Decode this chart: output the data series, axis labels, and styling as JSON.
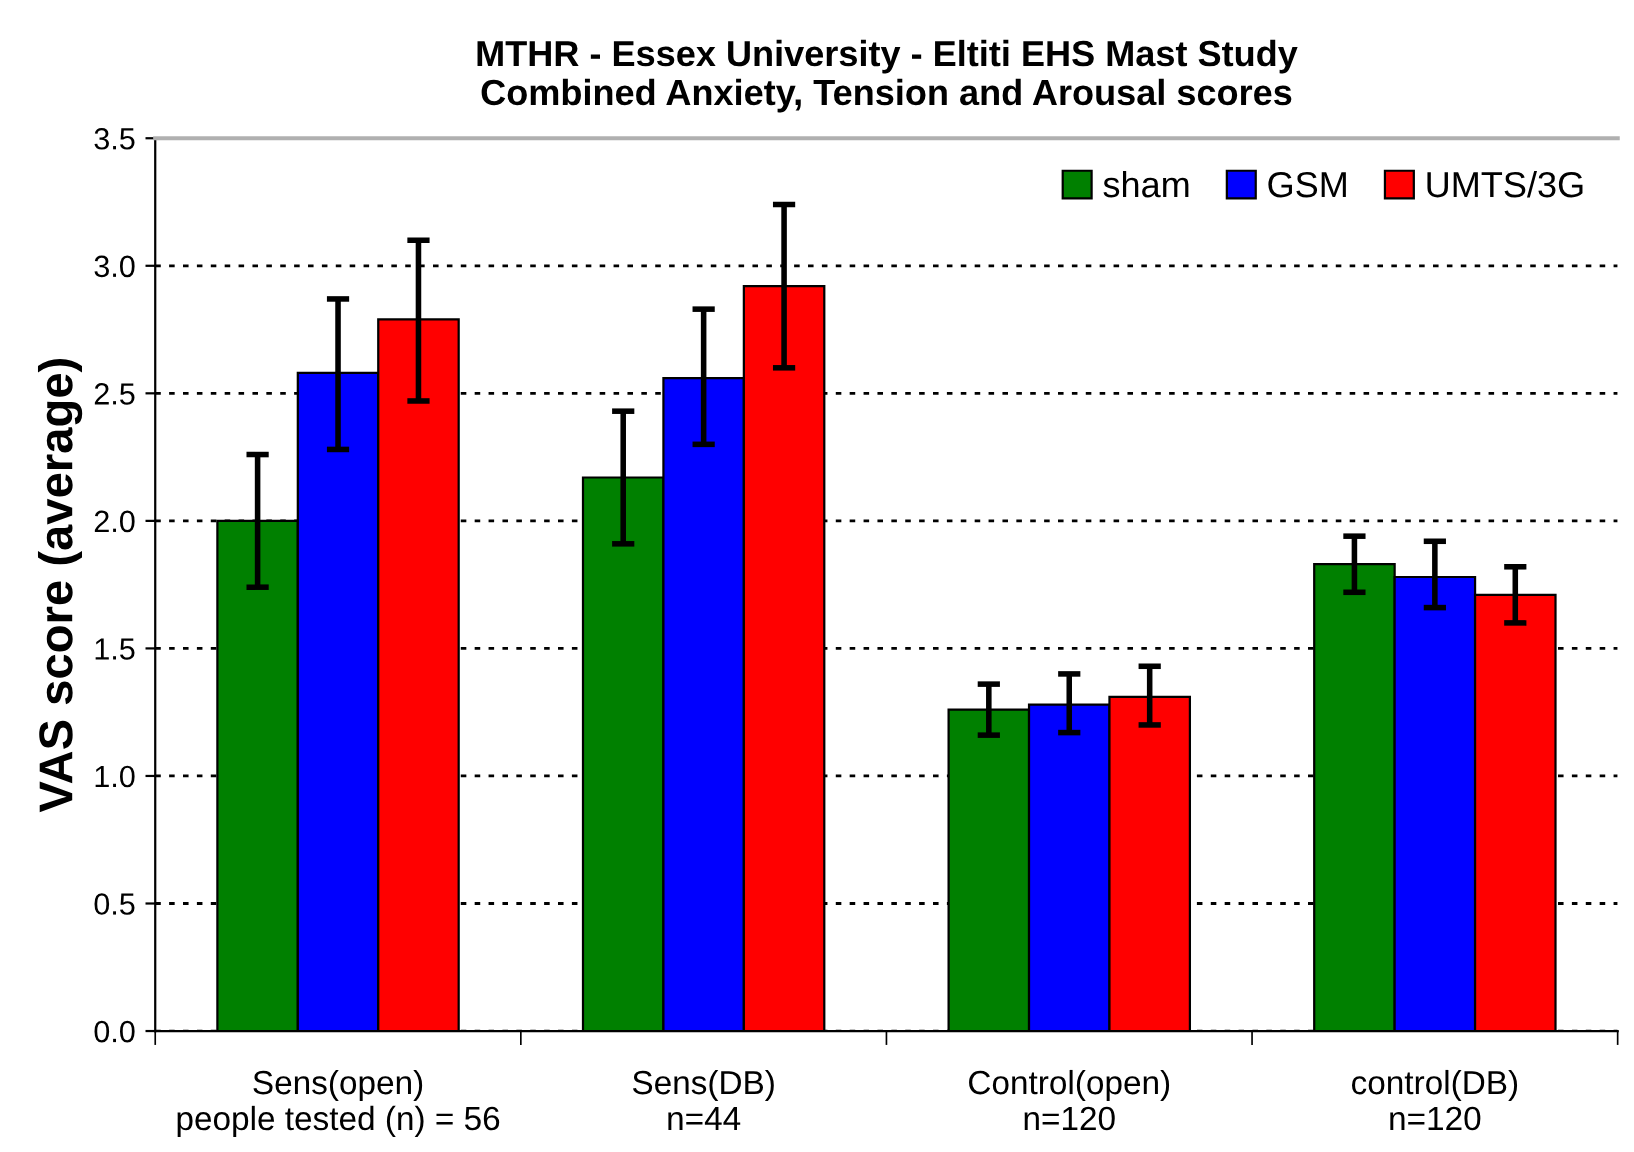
{
  "chart_data": {
    "type": "bar",
    "title": "MTHR - Essex University - Eltiti EHS Mast Study\nCombined Anxiety, Tension and Arousal scores",
    "ylabel": "VAS score (average)",
    "categories": [
      "Sens(open)\npeople tested (n) = 56",
      "Sens(DB)\nn=44",
      "Control(open)\nn=120",
      "control(DB)\nn=120"
    ],
    "series": [
      {
        "name": "sham",
        "color": "#008000",
        "values": [
          2.0,
          2.17,
          1.26,
          1.83
        ],
        "errors": [
          [
            1.74,
            2.26
          ],
          [
            1.91,
            2.43
          ],
          [
            1.16,
            1.36
          ],
          [
            1.72,
            1.94
          ]
        ]
      },
      {
        "name": "GSM",
        "color": "#0000ff",
        "values": [
          2.58,
          2.56,
          1.28,
          1.78
        ],
        "errors": [
          [
            2.28,
            2.87
          ],
          [
            2.3,
            2.83
          ],
          [
            1.17,
            1.4
          ],
          [
            1.66,
            1.92
          ]
        ]
      },
      {
        "name": "UMTS/3G",
        "color": "#ff0000",
        "values": [
          2.79,
          2.92,
          1.31,
          1.71
        ],
        "errors": [
          [
            2.47,
            3.1
          ],
          [
            2.6,
            3.24
          ],
          [
            1.2,
            1.43
          ],
          [
            1.6,
            1.82
          ]
        ]
      }
    ],
    "ylim": [
      0,
      3.5
    ],
    "yticks": [
      {
        "value": 0,
        "label": "0.0"
      },
      {
        "value": 0.5,
        "label": "0.5"
      },
      {
        "value": 1.0,
        "label": "1.0"
      },
      {
        "value": 1.5,
        "label": "1.5"
      },
      {
        "value": 2.0,
        "label": "2.0"
      },
      {
        "value": 2.5,
        "label": "2.5"
      },
      {
        "value": 3.0,
        "label": "3.0"
      },
      {
        "value": 3.5,
        "label": "3.5"
      }
    ],
    "grid": "y",
    "legend": "top right"
  }
}
